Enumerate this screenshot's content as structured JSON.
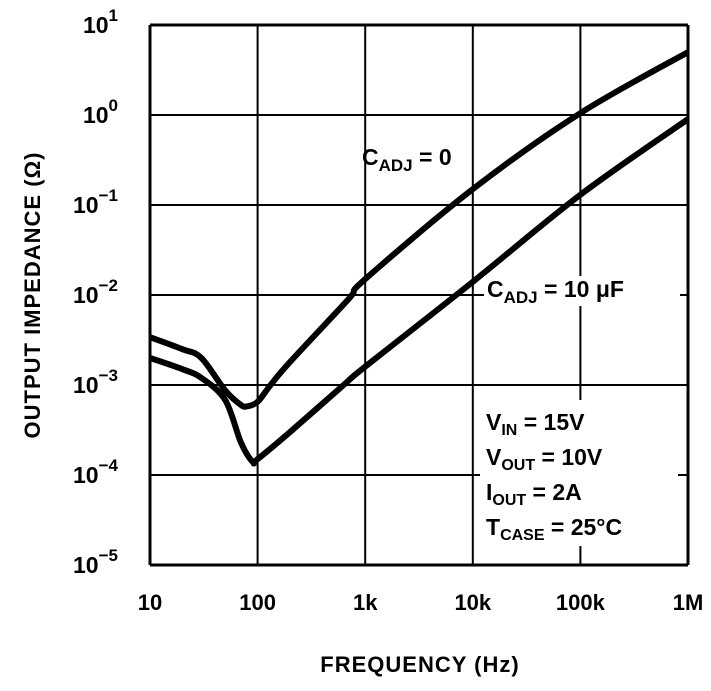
{
  "chart_data": {
    "type": "line",
    "title": "",
    "xlabel": "FREQUENCY (Hz)",
    "ylabel": "OUTPUT IMPEDANCE (Ω)",
    "x_scale": "log",
    "y_scale": "log",
    "xlim": [
      10,
      1000000
    ],
    "ylim": [
      1e-05,
      10
    ],
    "grid": true,
    "x_ticks": [
      {
        "value": 10,
        "label": "10"
      },
      {
        "value": 100,
        "label": "100"
      },
      {
        "value": 1000,
        "label": "1k"
      },
      {
        "value": 10000,
        "label": "10k"
      },
      {
        "value": 100000,
        "label": "100k"
      },
      {
        "value": 1000000,
        "label": "1M"
      }
    ],
    "y_ticks": [
      {
        "value": 10,
        "base": "10",
        "exp": "1"
      },
      {
        "value": 1,
        "base": "10",
        "exp": "0"
      },
      {
        "value": 0.1,
        "base": "10",
        "exp": "−1"
      },
      {
        "value": 0.01,
        "base": "10",
        "exp": "−2"
      },
      {
        "value": 0.001,
        "base": "10",
        "exp": "−3"
      },
      {
        "value": 0.0001,
        "base": "10",
        "exp": "−4"
      },
      {
        "value": 1e-05,
        "base": "10",
        "exp": "−5"
      }
    ],
    "series": [
      {
        "name": "CADJ = 0",
        "label": {
          "main": "C",
          "sub": "ADJ",
          "rest": " = 0"
        },
        "x": [
          10,
          20,
          30,
          50,
          70,
          80,
          100,
          132,
          200,
          700,
          1000,
          10000,
          100000,
          1000000
        ],
        "y": [
          0.0034,
          0.0025,
          0.002,
          0.00087,
          0.0006,
          0.00058,
          0.00065,
          0.001,
          0.0018,
          0.009,
          0.015,
          0.15,
          1.05,
          5
        ]
      },
      {
        "name": "CADJ = 10 μF",
        "label": {
          "main": "C",
          "sub": "ADJ",
          "rest": " = 10 μF"
        },
        "x": [
          10,
          20,
          30,
          50,
          70,
          90,
          100,
          200,
          630,
          1000,
          10000,
          100000,
          1000000
        ],
        "y": [
          0.002,
          0.0015,
          0.0012,
          0.00068,
          0.00023,
          0.00014,
          0.00015,
          0.0003,
          0.001,
          0.0016,
          0.014,
          0.13,
          0.9
        ]
      }
    ],
    "conditions": [
      {
        "main": "V",
        "sub": "IN",
        "rest": " = 15V"
      },
      {
        "main": "V",
        "sub": "OUT",
        "rest": " = 10V"
      },
      {
        "main": "I",
        "sub": "OUT",
        "rest": " = 2A"
      },
      {
        "main": "T",
        "sub": "CASE",
        "rest": " = 25°C"
      }
    ],
    "colors": {
      "line": "#000000",
      "background": "#ffffff"
    }
  }
}
